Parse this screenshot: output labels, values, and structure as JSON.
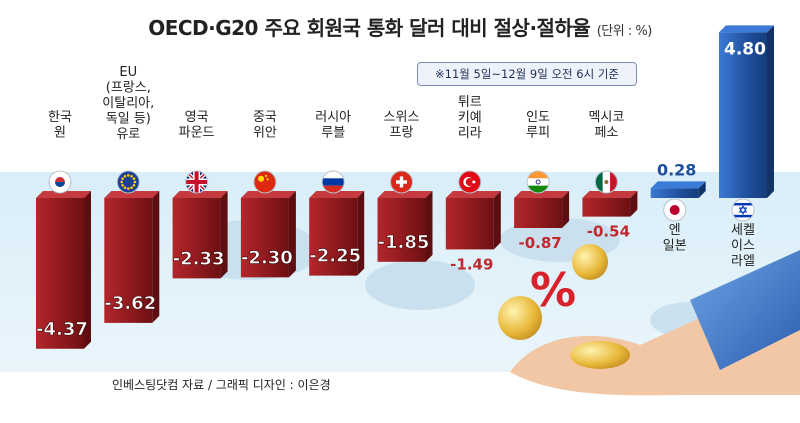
{
  "title": "OECD·G20 주요 회원국 통화 달러 대비 절상·절하율",
  "unit": "(단위 : %)",
  "note": "※11월 5일~12월 9일 오전 6시 기준",
  "source": "인베스팅닷컴 자료 / 그래픽 디자인 : 이은경",
  "colors": {
    "negative_bar": "#8e1a1e",
    "negative_bar_light": "#c43a3e",
    "positive_bar": "#1f4f9c",
    "positive_bar_light": "#3b7ad6",
    "negative_text": "#c0282e",
    "positive_text": "#1d4f9a",
    "band": "#cfe6f5"
  },
  "chart_data": {
    "type": "bar",
    "categories": [
      "한국 원",
      "EU (프랑스, 이탈리아, 독일 등) 유로",
      "영국 파운드",
      "중국 위안",
      "러시아 루블",
      "스위스 프랑",
      "튀르키예 리라",
      "인도 루피",
      "멕시코 페소",
      "엔 일본",
      "세켈 이스라엘"
    ],
    "label_lines": [
      [
        "한국",
        "원"
      ],
      [
        "EU",
        "(프랑스,",
        "이탈리아,",
        "독일 등)",
        "유로"
      ],
      [
        "영국",
        "파운드"
      ],
      [
        "중국",
        "위안"
      ],
      [
        "러시아",
        "루블"
      ],
      [
        "스위스",
        "프랑"
      ],
      [
        "튀르",
        "키예",
        "리라"
      ],
      [
        "인도",
        "루피"
      ],
      [
        "멕시코",
        "페소"
      ],
      [
        "엔",
        "일본"
      ],
      [
        "세켈",
        "이스",
        "라엘"
      ]
    ],
    "value_labels": [
      "-4.37",
      "-3.62",
      "-2.33",
      "-2.30",
      "-2.25",
      "-1.85",
      "-1.49",
      "-0.87",
      "-0.54",
      "0.28",
      "4.80"
    ],
    "values": [
      -4.37,
      -3.62,
      -2.33,
      -2.3,
      -2.25,
      -1.85,
      -1.49,
      -0.87,
      -0.54,
      0.28,
      4.8
    ],
    "flag_icons": [
      "korea-flag-icon",
      "eu-flag-icon",
      "uk-flag-icon",
      "china-flag-icon",
      "russia-flag-icon",
      "switzerland-flag-icon",
      "turkey-flag-icon",
      "india-flag-icon",
      "mexico-flag-icon",
      "japan-flag-icon",
      "israel-flag-icon"
    ],
    "ylim": [
      -4.37,
      4.8
    ],
    "grid": false,
    "legend": "none"
  }
}
